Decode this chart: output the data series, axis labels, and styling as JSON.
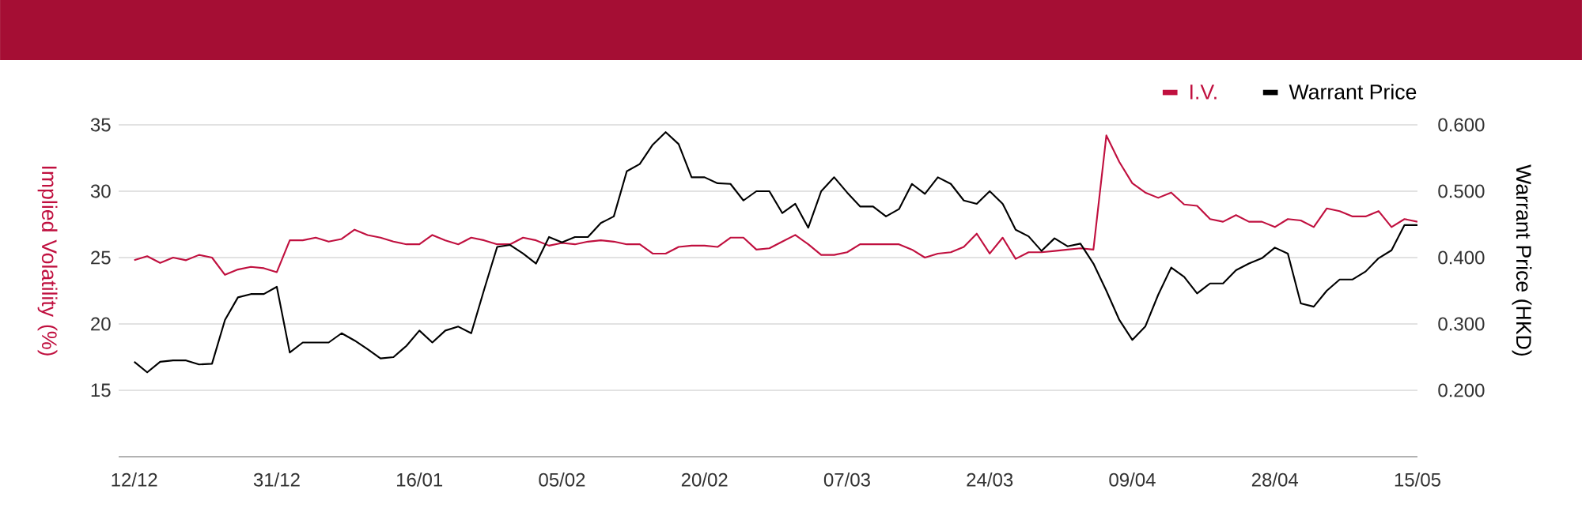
{
  "chart_data": {
    "type": "line",
    "ylabel": "Implied Volatility (%)",
    "y2label": "Warrant Price (HKD)",
    "categories": [
      "12/12",
      null,
      null,
      null,
      null,
      null,
      null,
      null,
      null,
      null,
      null,
      "31/12",
      null,
      null,
      null,
      null,
      null,
      null,
      null,
      null,
      null,
      null,
      "16/01",
      null,
      null,
      null,
      null,
      null,
      null,
      null,
      null,
      null,
      null,
      "05/02",
      null,
      null,
      null,
      null,
      null,
      null,
      null,
      null,
      null,
      null,
      "20/02",
      null,
      null,
      null,
      null,
      null,
      null,
      null,
      null,
      null,
      null,
      "07/03",
      null,
      null,
      null,
      null,
      null,
      null,
      null,
      null,
      null,
      null,
      "24/03",
      null,
      null,
      null,
      null,
      null,
      null,
      null,
      null,
      null,
      null,
      "09/04",
      null,
      null,
      null,
      null,
      null,
      null,
      null,
      null,
      null,
      null,
      "28/04",
      null,
      null,
      null,
      null,
      null,
      null,
      null,
      null,
      null,
      null,
      "15/05"
    ],
    "series": [
      {
        "name": "I.V.",
        "color": "#c0103f",
        "values": [
          24.8,
          25.1,
          24.6,
          25.0,
          24.8,
          25.2,
          25.0,
          23.7,
          24.1,
          24.3,
          24.2,
          23.9,
          26.3,
          26.3,
          26.5,
          26.2,
          26.4,
          27.1,
          26.7,
          26.5,
          26.2,
          26.0,
          26.0,
          26.7,
          26.3,
          26.0,
          26.5,
          26.3,
          26.0,
          26.0,
          26.5,
          26.3,
          25.9,
          26.1,
          26.0,
          26.2,
          26.3,
          26.2,
          26.0,
          26.0,
          25.3,
          25.3,
          25.8,
          25.9,
          25.9,
          25.8,
          26.5,
          26.5,
          25.6,
          25.7,
          26.2,
          26.7,
          26.0,
          25.2,
          25.2,
          25.4,
          26.0,
          26.0,
          26.0,
          26.0,
          25.6,
          25.0,
          25.3,
          25.4,
          25.8,
          26.8,
          25.3,
          26.5,
          24.9,
          25.4,
          25.4,
          25.5,
          25.6,
          25.7,
          25.6,
          34.2,
          32.2,
          30.6,
          29.9,
          29.5,
          29.9,
          29.0,
          28.9,
          27.9,
          27.7,
          28.2,
          27.7,
          27.7,
          27.3,
          27.9,
          27.8,
          27.3,
          28.7,
          28.5,
          28.1,
          28.1,
          28.5,
          27.3,
          27.9,
          27.7
        ]
      },
      {
        "name": "Warrant Price",
        "color": "#000000",
        "axis": "y2",
        "values": [
          0.243,
          0.227,
          0.243,
          0.245,
          0.245,
          0.239,
          0.24,
          0.306,
          0.34,
          0.345,
          0.345,
          0.356,
          0.257,
          0.272,
          0.272,
          0.272,
          0.286,
          0.275,
          0.262,
          0.248,
          0.25,
          0.267,
          0.29,
          0.272,
          0.29,
          0.296,
          0.286,
          0.352,
          0.416,
          0.419,
          0.406,
          0.391,
          0.431,
          0.423,
          0.431,
          0.431,
          0.452,
          0.462,
          0.53,
          0.541,
          0.57,
          0.589,
          0.571,
          0.521,
          0.521,
          0.512,
          0.511,
          0.486,
          0.5,
          0.5,
          0.467,
          0.481,
          0.445,
          0.5,
          0.521,
          0.498,
          0.477,
          0.477,
          0.462,
          0.473,
          0.511,
          0.496,
          0.521,
          0.511,
          0.486,
          0.481,
          0.5,
          0.481,
          0.442,
          0.432,
          0.41,
          0.429,
          0.417,
          0.421,
          0.391,
          0.35,
          0.306,
          0.276,
          0.296,
          0.344,
          0.385,
          0.371,
          0.346,
          0.361,
          0.361,
          0.381,
          0.391,
          0.399,
          0.415,
          0.406,
          0.331,
          0.326,
          0.35,
          0.367,
          0.367,
          0.379,
          0.399,
          0.411,
          0.449,
          0.449
        ]
      }
    ],
    "ylim": [
      10,
      35
    ],
    "yticks": [
      15,
      20,
      25,
      30,
      35
    ],
    "y2lim": [
      0.1,
      0.6
    ],
    "y2ticks": [
      {
        "value": 0.2,
        "label": "0.200"
      },
      {
        "value": 0.3,
        "label": "0.300"
      },
      {
        "value": 0.4,
        "label": "0.400"
      },
      {
        "value": 0.5,
        "label": "0.500"
      },
      {
        "value": 0.6,
        "label": "0.600"
      }
    ],
    "grid": "y",
    "legend": "top right",
    "marker": "none",
    "line_style": "solid"
  }
}
